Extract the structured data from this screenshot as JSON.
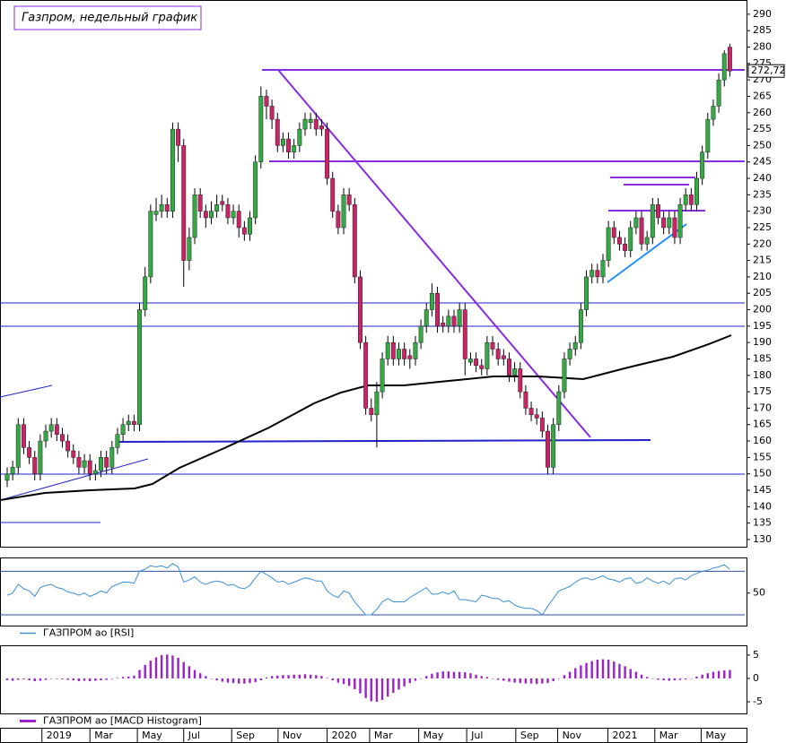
{
  "chart_data": [
    {
      "type": "candlestick",
      "title": "Газпром, недельный график",
      "up_color": "#33aa44",
      "down_color": "#cc2266",
      "xlim": [
        -1.3,
        133.7
      ],
      "ylim": [
        127.8,
        292.7
      ],
      "yticks": [
        130,
        135,
        140,
        145,
        150,
        155,
        160,
        165,
        170,
        175,
        180,
        185,
        190,
        195,
        200,
        205,
        210,
        215,
        220,
        225,
        230,
        235,
        240,
        245,
        250,
        255,
        260,
        265,
        270,
        275,
        280,
        285,
        290
      ],
      "xticks": [
        {
          "value": 6.3,
          "label": "2019"
        },
        {
          "value": 15,
          "label": "Mar"
        },
        {
          "value": 23.6,
          "label": "May"
        },
        {
          "value": 32,
          "label": "Jul"
        },
        {
          "value": 40.7,
          "label": "Sep"
        },
        {
          "value": 49.1,
          "label": "Nov"
        },
        {
          "value": 58,
          "label": "2020"
        },
        {
          "value": 65.7,
          "label": "Mar"
        },
        {
          "value": 74.6,
          "label": "May"
        },
        {
          "value": 83.3,
          "label": "Jul"
        },
        {
          "value": 92.2,
          "label": "Sep"
        },
        {
          "value": 99.8,
          "label": "Nov"
        },
        {
          "value": 108.9,
          "label": "2021"
        },
        {
          "value": 117.4,
          "label": "Mar"
        },
        {
          "value": 125.8,
          "label": "May"
        }
      ],
      "last_price": {
        "value": 272.72,
        "label": "272,72"
      },
      "ohlc": [
        [
          148,
          152,
          146,
          150
        ],
        [
          150,
          154,
          148,
          152
        ],
        [
          152,
          167,
          150,
          165
        ],
        [
          165,
          167,
          156,
          158
        ],
        [
          158,
          160,
          153,
          155
        ],
        [
          155,
          157,
          148,
          150
        ],
        [
          150,
          162,
          148,
          160
        ],
        [
          160,
          165,
          158,
          163
        ],
        [
          163,
          167,
          161,
          165
        ],
        [
          165,
          167,
          160,
          162
        ],
        [
          162,
          164,
          158,
          160
        ],
        [
          160,
          162,
          155,
          157
        ],
        [
          157,
          159,
          153,
          155
        ],
        [
          155,
          157,
          150,
          152
        ],
        [
          152,
          156,
          150,
          154
        ],
        [
          154,
          156,
          148,
          150
        ],
        [
          150,
          153,
          148,
          151
        ],
        [
          151,
          157,
          149,
          155
        ],
        [
          155,
          157,
          150,
          152
        ],
        [
          152,
          160,
          150,
          158
        ],
        [
          158,
          164,
          156,
          162
        ],
        [
          162,
          167,
          160,
          165
        ],
        [
          165,
          168,
          163,
          166
        ],
        [
          166,
          168,
          163,
          165
        ],
        [
          165,
          202,
          163,
          200
        ],
        [
          200,
          213,
          198,
          210
        ],
        [
          210,
          232,
          208,
          230
        ],
        [
          229,
          234,
          227,
          230
        ],
        [
          230,
          235,
          228,
          232
        ],
        [
          232,
          234,
          228,
          230
        ],
        [
          230,
          257,
          228,
          255
        ],
        [
          255,
          257,
          245,
          250
        ],
        [
          250,
          252,
          207,
          215
        ],
        [
          215,
          225,
          212,
          222
        ],
        [
          222,
          237,
          220,
          235
        ],
        [
          235,
          237,
          228,
          230
        ],
        [
          230,
          232,
          225,
          228
        ],
        [
          228,
          233,
          226,
          230
        ],
        [
          230,
          235,
          228,
          232
        ],
        [
          233,
          235,
          230,
          232
        ],
        [
          232,
          234,
          226,
          228
        ],
        [
          228,
          232,
          226,
          230
        ],
        [
          230,
          232,
          222,
          225
        ],
        [
          225,
          227,
          221,
          223
        ],
        [
          223,
          230,
          221,
          228
        ],
        [
          228,
          247,
          226,
          245
        ],
        [
          245,
          268,
          243,
          265
        ],
        [
          265,
          267,
          258,
          262
        ],
        [
          262,
          264,
          255,
          258
        ],
        [
          258,
          260,
          248,
          250
        ],
        [
          250,
          254,
          248,
          252
        ],
        [
          252,
          254,
          246,
          248
        ],
        [
          248,
          252,
          246,
          250
        ],
        [
          250,
          257,
          248,
          255
        ],
        [
          255,
          260,
          253,
          258
        ],
        [
          257,
          260,
          255,
          258
        ],
        [
          258,
          260,
          253,
          255
        ],
        [
          256,
          258,
          253,
          255
        ],
        [
          255,
          257,
          238,
          240
        ],
        [
          240,
          242,
          228,
          230
        ],
        [
          230,
          232,
          223,
          225
        ],
        [
          225,
          237,
          223,
          235
        ],
        [
          235,
          237,
          230,
          232
        ],
        [
          232,
          234,
          208,
          210
        ],
        [
          210,
          212,
          188,
          190
        ],
        [
          190,
          192,
          168,
          170
        ],
        [
          170,
          173,
          166,
          168
        ],
        [
          168,
          178,
          158,
          175
        ],
        [
          175,
          187,
          173,
          185
        ],
        [
          185,
          192,
          183,
          190
        ],
        [
          190,
          192,
          183,
          185
        ],
        [
          185,
          190,
          183,
          188
        ],
        [
          188,
          190,
          183,
          185
        ],
        [
          186,
          188,
          182,
          185
        ],
        [
          185,
          192,
          183,
          190
        ],
        [
          190,
          197,
          188,
          195
        ],
        [
          195,
          202,
          193,
          200
        ],
        [
          200,
          208,
          198,
          205
        ],
        [
          205,
          207,
          193,
          195
        ],
        [
          196,
          198,
          193,
          195
        ],
        [
          195,
          200,
          193,
          198
        ],
        [
          198,
          200,
          193,
          195
        ],
        [
          195,
          202,
          193,
          200
        ],
        [
          200,
          202,
          180,
          185
        ],
        [
          184,
          187,
          183,
          185
        ],
        [
          185,
          187,
          181,
          183
        ],
        [
          183,
          185,
          180,
          182
        ],
        [
          182,
          192,
          180,
          190
        ],
        [
          190,
          192,
          186,
          188
        ],
        [
          188,
          190,
          183,
          185
        ],
        [
          186,
          188,
          183,
          185
        ],
        [
          185,
          187,
          178,
          180
        ],
        [
          180,
          184,
          178,
          182
        ],
        [
          182,
          184,
          173,
          175
        ],
        [
          175,
          177,
          168,
          170
        ],
        [
          170,
          172,
          166,
          168
        ],
        [
          168,
          170,
          165,
          167
        ],
        [
          167,
          169,
          161,
          163
        ],
        [
          163,
          165,
          150,
          152
        ],
        [
          152,
          167,
          150,
          165
        ],
        [
          165,
          177,
          163,
          175
        ],
        [
          175,
          187,
          173,
          185
        ],
        [
          185,
          190,
          183,
          188
        ],
        [
          188,
          192,
          186,
          190
        ],
        [
          190,
          202,
          188,
          200
        ],
        [
          200,
          212,
          198,
          210
        ],
        [
          210,
          214,
          208,
          212
        ],
        [
          212,
          214,
          208,
          210
        ],
        [
          210,
          217,
          208,
          215
        ],
        [
          215,
          227,
          213,
          225
        ],
        [
          225,
          227,
          220,
          222
        ],
        [
          222,
          224,
          218,
          220
        ],
        [
          220,
          222,
          216,
          218
        ],
        [
          218,
          227,
          216,
          225
        ],
        [
          225,
          230,
          223,
          228
        ],
        [
          228,
          230,
          218,
          220
        ],
        [
          220,
          224,
          218,
          222
        ],
        [
          222,
          234,
          220,
          232
        ],
        [
          232,
          234,
          226,
          228
        ],
        [
          228,
          230,
          223,
          225
        ],
        [
          225,
          230,
          223,
          228
        ],
        [
          228,
          230,
          220,
          222
        ],
        [
          222,
          234,
          220,
          232
        ],
        [
          232,
          237,
          230,
          235
        ],
        [
          235,
          237,
          230,
          232
        ],
        [
          232,
          242,
          230,
          240
        ],
        [
          240,
          250,
          238,
          248
        ],
        [
          248,
          260,
          246,
          258
        ],
        [
          258,
          264,
          256,
          262
        ],
        [
          262,
          272,
          260,
          270
        ],
        [
          270,
          279,
          268,
          278
        ],
        [
          280,
          281,
          271,
          272.72
        ]
      ]
    },
    {
      "type": "line",
      "ylim": [
        21,
        81
      ],
      "yticks": [
        50
      ],
      "reference_lines": [
        70,
        30
      ],
      "series": [
        {
          "name": "ГАЗПРОМ ао [RSI]",
          "color": "#3b8fd6",
          "values": [
            48,
            50,
            58,
            54,
            52,
            47,
            55,
            57,
            58,
            55,
            54,
            51,
            50,
            48,
            50,
            47,
            49,
            52,
            50,
            56,
            58,
            60,
            60,
            59,
            70,
            72,
            75,
            74,
            75,
            73,
            77,
            74,
            60,
            62,
            65,
            60,
            58,
            60,
            61,
            60,
            57,
            58,
            55,
            54,
            57,
            64,
            70,
            67,
            64,
            60,
            61,
            58,
            60,
            62,
            64,
            63,
            61,
            61,
            52,
            48,
            46,
            52,
            50,
            42,
            36,
            30,
            30,
            35,
            42,
            45,
            42,
            42,
            42,
            46,
            49,
            52,
            55,
            49,
            49,
            51,
            49,
            52,
            44,
            44,
            43,
            42,
            48,
            47,
            45,
            45,
            42,
            43,
            39,
            37,
            36,
            36,
            34,
            30,
            38,
            45,
            52,
            54,
            56,
            60,
            63,
            64,
            62,
            64,
            66,
            63,
            62,
            60,
            63,
            64,
            59,
            60,
            64,
            61,
            59,
            61,
            58,
            63,
            64,
            62,
            66,
            68,
            70,
            71,
            73,
            74,
            76,
            72
          ]
        }
      ]
    },
    {
      "type": "bar",
      "ylim": [
        -7.3,
        6.7
      ],
      "yticks": [
        -5,
        0,
        5
      ],
      "series": [
        {
          "name": "ГАЗПРОМ ао [MACD Histogram]",
          "color": "#9a22c8",
          "values": [
            -0.4,
            -0.5,
            -0.3,
            -0.2,
            -0.4,
            -0.6,
            -0.5,
            -0.3,
            -0.1,
            0,
            -0.2,
            -0.3,
            -0.4,
            -0.6,
            -0.5,
            -0.6,
            -0.5,
            -0.4,
            -0.3,
            -0.1,
            0.1,
            0.3,
            0.4,
            0.6,
            1.8,
            2.9,
            3.8,
            4.5,
            5,
            5.1,
            4.9,
            4.4,
            3.5,
            2.6,
            1.8,
            1.1,
            0.5,
            0,
            -0.4,
            -0.7,
            -0.9,
            -1,
            -1.1,
            -1.1,
            -1,
            -0.8,
            -0.4,
            0.2,
            0.5,
            0.6,
            0.7,
            0.7,
            0.8,
            0.8,
            0.9,
            0.8,
            0.7,
            0.5,
            0.1,
            -0.4,
            -0.9,
            -1.2,
            -1.6,
            -2.3,
            -3.2,
            -4.2,
            -4.9,
            -5,
            -4.6,
            -3.9,
            -3.1,
            -2.4,
            -1.7,
            -1,
            -0.5,
            0,
            0.5,
            1,
            1.3,
            1.5,
            1.5,
            1.4,
            1.4,
            1.3,
            1.1,
            0.8,
            0.5,
            0.3,
            0,
            -0.3,
            -0.5,
            -0.7,
            -0.9,
            -1,
            -1.1,
            -1.1,
            -1.2,
            -1.1,
            -1,
            -0.6,
            0,
            0.7,
            1.4,
            2.2,
            2.8,
            3.3,
            3.7,
            4,
            4.1,
            4,
            3.6,
            3.1,
            2.6,
            2,
            1.4,
            0.8,
            0.3,
            0,
            -0.3,
            -0.4,
            -0.5,
            -0.4,
            -0.3,
            -0.2,
            0,
            0.4,
            0.8,
            1.1,
            1.4,
            1.6,
            1.7,
            1.8
          ]
        }
      ]
    }
  ]
}
